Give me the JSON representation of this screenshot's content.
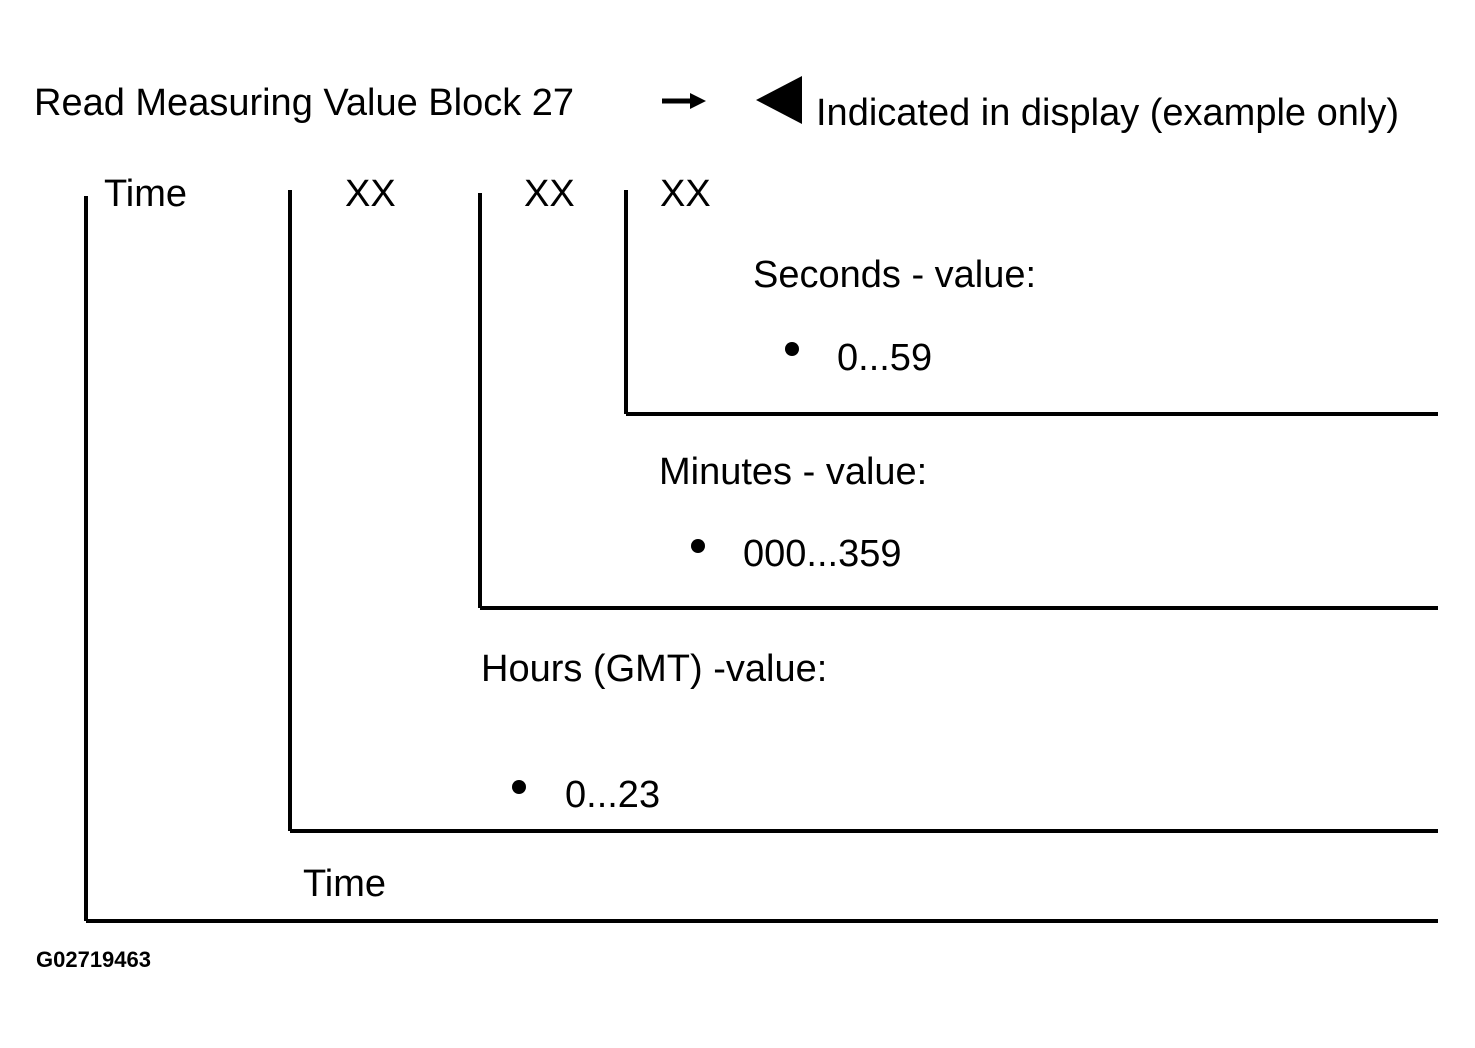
{
  "header": {
    "title": "Read Measuring Value Block 27",
    "legend": "Indicated in display (example only)"
  },
  "display": {
    "label": "Time",
    "fields": [
      "XX",
      "XX",
      "XX"
    ]
  },
  "sections": [
    {
      "title": "Seconds - value:",
      "range": "0...59"
    },
    {
      "title": "Minutes - value:",
      "range": "000...359"
    },
    {
      "title": "Hours (GMT) -value:",
      "range": "0...23"
    }
  ],
  "footer": {
    "label": "Time",
    "code": "G02719463"
  }
}
